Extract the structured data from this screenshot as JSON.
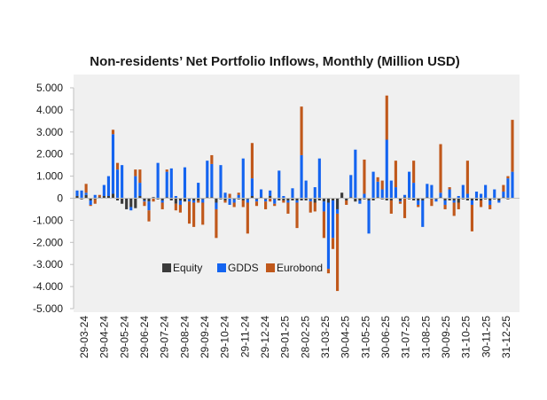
{
  "colors": {
    "equity": "#3b3b3b",
    "gdds": "#1464f0",
    "eurobond": "#c0581b",
    "plot_background": "#f0f0f0",
    "zero_line": "#d9d9d9",
    "axis": "#bfbfbf"
  },
  "chart_data": {
    "type": "bar",
    "stacked": true,
    "title": "Non-residents’ Net Portfolio Inflows, Monthly (Million USD)",
    "xlabel": "",
    "ylabel": "",
    "ylim": [
      -5000,
      5000
    ],
    "y_ticks": [
      5000,
      4000,
      3000,
      2000,
      1000,
      0,
      -1000,
      -2000,
      -3000,
      -4000,
      -5000
    ],
    "y_tick_labels": [
      "5.000",
      "4.000",
      "3.000",
      "2.000",
      "1.000",
      "0",
      "-1.000",
      "-2.000",
      "-3.000",
      "-4.000",
      "-5.000"
    ],
    "x_tick_labels": [
      "29-03-24",
      "29-04-24",
      "29-05-24",
      "29-06-24",
      "29-07-24",
      "29-08-24",
      "29-09-24",
      "29-10-24",
      "29-11-24",
      "29-12-24",
      "29-01-25",
      "28-02-25",
      "31-03-25",
      "30-04-25",
      "31-05-25",
      "30-06-25",
      "31-07-25",
      "31-08-25",
      "30-09-25",
      "31-10-25",
      "30-11-25",
      "31-12-25"
    ],
    "legend": [
      "Equity",
      "GDDS",
      "Eurobond"
    ],
    "legend_position": "lower-center",
    "grid": false,
    "note": "Weekly stacked bars; values estimated from gridlines. Each entry is [Equity, GDDS, Eurobond].",
    "series_values": [
      [
        100,
        250,
        0
      ],
      [
        -50,
        350,
        0
      ],
      [
        150,
        100,
        400
      ],
      [
        -100,
        -200,
        -50
      ],
      [
        -50,
        150,
        -200
      ],
      [
        50,
        0,
        100
      ],
      [
        100,
        500,
        0
      ],
      [
        100,
        900,
        0
      ],
      [
        200,
        2700,
        200
      ],
      [
        -100,
        1300,
        300
      ],
      [
        -250,
        1500,
        0
      ],
      [
        -500,
        0,
        0
      ],
      [
        -400,
        -150,
        0
      ],
      [
        -450,
        1000,
        300
      ],
      [
        100,
        600,
        600
      ],
      [
        -100,
        -50,
        -200
      ],
      [
        -150,
        -400,
        -500
      ],
      [
        50,
        0,
        -150
      ],
      [
        -50,
        1600,
        0
      ],
      [
        -100,
        -100,
        -300
      ],
      [
        50,
        1150,
        100
      ],
      [
        -100,
        1350,
        0
      ],
      [
        -250,
        100,
        -300
      ],
      [
        -100,
        -200,
        -350
      ],
      [
        -150,
        1400,
        0
      ],
      [
        -50,
        -100,
        -1000
      ],
      [
        -100,
        -100,
        -1100
      ],
      [
        -100,
        700,
        -100
      ],
      [
        -50,
        -150,
        -1000
      ],
      [
        50,
        1650,
        0
      ],
      [
        50,
        1500,
        400
      ],
      [
        -200,
        -300,
        -1300
      ],
      [
        -50,
        1500,
        0
      ],
      [
        -100,
        250,
        -100
      ],
      [
        0,
        -300,
        200
      ],
      [
        -50,
        -150,
        -200
      ],
      [
        -50,
        150,
        100
      ],
      [
        -100,
        1800,
        -300
      ],
      [
        -50,
        -150,
        -1400
      ],
      [
        100,
        800,
        1600
      ],
      [
        -50,
        -100,
        -200
      ],
      [
        50,
        350,
        0
      ],
      [
        -50,
        -100,
        -350
      ],
      [
        100,
        250,
        -150
      ],
      [
        -50,
        -200,
        -100
      ],
      [
        -100,
        1250,
        0
      ],
      [
        -100,
        100,
        -100
      ],
      [
        -100,
        -100,
        -500
      ],
      [
        -100,
        450,
        0
      ],
      [
        -100,
        -100,
        -1150
      ],
      [
        -100,
        1950,
        2200
      ],
      [
        -100,
        800,
        0
      ],
      [
        -50,
        -100,
        -500
      ],
      [
        -200,
        500,
        -400
      ],
      [
        -100,
        1800,
        0
      ],
      [
        -150,
        -450,
        -1200
      ],
      [
        -200,
        -3000,
        -200
      ],
      [
        -100,
        -1700,
        -500
      ],
      [
        -500,
        -200,
        -3500
      ],
      [
        250,
        0,
        0
      ],
      [
        -100,
        0,
        -200
      ],
      [
        50,
        1000,
        0
      ],
      [
        -150,
        2200,
        0
      ],
      [
        -100,
        -150,
        0
      ],
      [
        -50,
        200,
        1550
      ],
      [
        -100,
        -1500,
        0
      ],
      [
        -100,
        1200,
        0
      ],
      [
        50,
        700,
        200
      ],
      [
        -50,
        400,
        400
      ],
      [
        -100,
        2650,
        2000
      ],
      [
        -100,
        800,
        -600
      ],
      [
        0,
        500,
        1200
      ],
      [
        -100,
        -50,
        -100
      ],
      [
        50,
        100,
        -900
      ],
      [
        -50,
        1200,
        0
      ],
      [
        -100,
        700,
        1000
      ],
      [
        -100,
        -200,
        -100
      ],
      [
        -100,
        -1200,
        0
      ],
      [
        50,
        600,
        0
      ],
      [
        -50,
        600,
        -300
      ],
      [
        -50,
        -100,
        0
      ],
      [
        50,
        200,
        2200
      ],
      [
        -100,
        -200,
        -200
      ],
      [
        -100,
        400,
        100
      ],
      [
        -100,
        -100,
        -600
      ],
      [
        -200,
        100,
        -300
      ],
      [
        -50,
        600,
        0
      ],
      [
        -100,
        200,
        1500
      ],
      [
        -100,
        -200,
        -1200
      ],
      [
        -100,
        300,
        0
      ],
      [
        -100,
        200,
        -300
      ],
      [
        -50,
        600,
        0
      ],
      [
        -100,
        -200,
        -200
      ],
      [
        -50,
        400,
        0
      ],
      [
        -100,
        -100,
        0
      ],
      [
        50,
        250,
        300
      ],
      [
        -50,
        900,
        100
      ],
      [
        0,
        1200,
        2350
      ]
    ]
  }
}
